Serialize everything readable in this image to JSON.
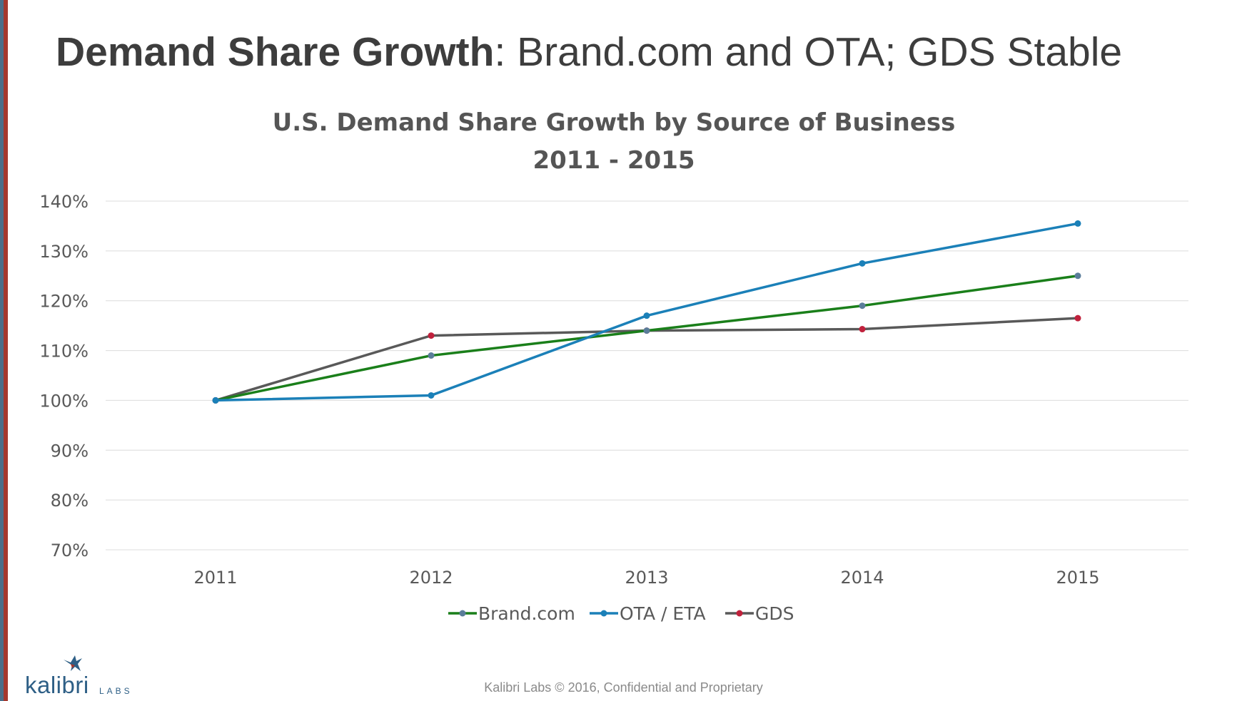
{
  "slide": {
    "title_bold": "Demand Share Growth",
    "title_rest": ": Brand.com and OTA; GDS Stable",
    "footer": "Kalibri Labs © 2016, Confidential and Proprietary",
    "logo_text": "kalibri",
    "logo_sub": "LABS"
  },
  "colors": {
    "left_bar_blue": "#4a6f8a",
    "left_bar_red": "#a5392f",
    "brand_line": "#1a7f1a",
    "ota_line": "#1b80b8",
    "gds_line": "#595959",
    "gds_marker": "#c0213c",
    "brand_marker": "#5a7d9a"
  },
  "chart_data": {
    "type": "line",
    "title": "U.S. Demand Share Growth by Source of Business",
    "subtitle": "2011 - 2015",
    "categories": [
      "2011",
      "2012",
      "2013",
      "2014",
      "2015"
    ],
    "ylim": [
      0.7,
      1.4
    ],
    "yticks": [
      "70%",
      "80%",
      "90%",
      "100%",
      "110%",
      "120%",
      "130%",
      "140%"
    ],
    "grid": true,
    "legend_position": "bottom",
    "series": [
      {
        "name": "Brand.com",
        "values": [
          1.0,
          1.09,
          1.14,
          1.19,
          1.25
        ],
        "line_color": "#1a7f1a",
        "marker_color": "#5a7d9a"
      },
      {
        "name": "OTA / ETA",
        "values": [
          1.0,
          1.01,
          1.17,
          1.275,
          1.355
        ],
        "line_color": "#1b80b8",
        "marker_color": "#1b80b8"
      },
      {
        "name": "GDS",
        "values": [
          1.0,
          1.13,
          1.14,
          1.143,
          1.165
        ],
        "line_color": "#595959",
        "marker_color": "#c0213c"
      }
    ]
  }
}
